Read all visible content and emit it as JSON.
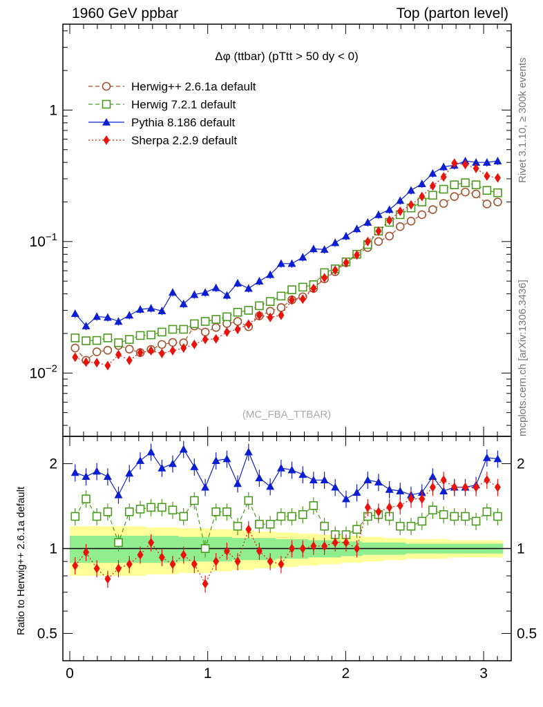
{
  "header": {
    "left": "1960 GeV ppbar",
    "right": "Top (parton level)"
  },
  "side_notes": {
    "rivet": "Rivet 3.1.10, ≥ 300k events",
    "mcplots": "mcplots.cern.ch [arXiv:1306.3436]"
  },
  "analysis_tag": "(MC_FBA_TTBAR)",
  "chart_data": [
    {
      "type": "scatter",
      "title": "Δφ (ttbar) (pTtt > 50 dy < 0)",
      "yscale": "log",
      "xlim": [
        -0.05,
        3.2
      ],
      "ylim": [
        0.0033,
        4.5
      ],
      "yticklabels": [
        "10^-2",
        "10^-1",
        "1"
      ],
      "legend_position": "top-left",
      "x": [
        0.039,
        0.118,
        0.196,
        0.275,
        0.353,
        0.432,
        0.511,
        0.589,
        0.668,
        0.746,
        0.825,
        0.903,
        0.982,
        1.06,
        1.139,
        1.217,
        1.296,
        1.374,
        1.453,
        1.532,
        1.61,
        1.689,
        1.767,
        1.846,
        1.924,
        2.003,
        2.081,
        2.16,
        2.238,
        2.317,
        2.395,
        2.474,
        2.553,
        2.631,
        2.71,
        2.788,
        2.867,
        2.945,
        3.024,
        3.102
      ],
      "series": [
        {
          "name": "Herwig++ 2.6.1a default",
          "color": "#a0522d",
          "marker": "open-circle",
          "line": "dashed",
          "values": [
            0.0155,
            0.0125,
            0.0145,
            0.0149,
            0.0162,
            0.0152,
            0.0143,
            0.0151,
            0.0165,
            0.0171,
            0.017,
            0.0228,
            0.0205,
            0.0222,
            0.0238,
            0.0247,
            0.0225,
            0.0272,
            0.0295,
            0.0315,
            0.036,
            0.038,
            0.044,
            0.052,
            0.059,
            0.069,
            0.08,
            0.09,
            0.1,
            0.11,
            0.13,
            0.143,
            0.16,
            0.175,
            0.195,
            0.22,
            0.238,
            0.23,
            0.193,
            0.2
          ]
        },
        {
          "name": "Herwig 7.2.1 default",
          "color": "#4a9a1e",
          "marker": "open-square",
          "line": "dashed",
          "values": [
            0.0185,
            0.0176,
            0.0177,
            0.0185,
            0.017,
            0.018,
            0.0193,
            0.0195,
            0.0205,
            0.0215,
            0.0215,
            0.0237,
            0.0247,
            0.0256,
            0.0268,
            0.029,
            0.03,
            0.0325,
            0.035,
            0.0385,
            0.043,
            0.045,
            0.047,
            0.058,
            0.062,
            0.07,
            0.08,
            0.095,
            0.12,
            0.14,
            0.16,
            0.18,
            0.2,
            0.225,
            0.25,
            0.27,
            0.28,
            0.27,
            0.245,
            0.235
          ]
        },
        {
          "name": "Pythia 8.186 default",
          "color": "#0b1fd0",
          "marker": "filled-triangle",
          "line": "solid",
          "values": [
            0.0283,
            0.0228,
            0.0269,
            0.0265,
            0.0247,
            0.0275,
            0.0305,
            0.0311,
            0.0297,
            0.0411,
            0.0336,
            0.0395,
            0.041,
            0.0445,
            0.039,
            0.0483,
            0.044,
            0.05,
            0.056,
            0.068,
            0.068,
            0.076,
            0.088,
            0.087,
            0.098,
            0.11,
            0.125,
            0.14,
            0.16,
            0.175,
            0.205,
            0.245,
            0.275,
            0.33,
            0.37,
            0.38,
            0.41,
            0.4,
            0.4,
            0.41
          ]
        },
        {
          "name": "Sherpa 2.2.9 default",
          "color": "#e8140c",
          "marker": "filled-diamond",
          "line": "dotted",
          "values": [
            0.0132,
            0.0121,
            0.012,
            0.0114,
            0.0138,
            0.0125,
            0.0143,
            0.0148,
            0.0141,
            0.0148,
            0.0155,
            0.0165,
            0.018,
            0.0182,
            0.0205,
            0.0215,
            0.0235,
            0.0275,
            0.0265,
            0.0275,
            0.036,
            0.0365,
            0.044,
            0.053,
            0.0605,
            0.069,
            0.079,
            0.1,
            0.12,
            0.145,
            0.17,
            0.19,
            0.22,
            0.265,
            0.31,
            0.395,
            0.385,
            0.36,
            0.315,
            0.305
          ]
        }
      ]
    },
    {
      "type": "scatter",
      "ylabel": "Ratio to Herwig++ 2.6.1a default",
      "yscale": "log",
      "xlim": [
        -0.05,
        3.2
      ],
      "ylim": [
        0.4,
        2.5
      ],
      "xticklabels": [
        "0",
        "1",
        "2",
        "3"
      ],
      "yticklabels": [
        "0.5",
        "1",
        "2"
      ],
      "reference_line": 1.0,
      "band_colors": {
        "inner": "#90ee90",
        "outer": "#ffff99"
      },
      "band_inner_halfwidth": [
        0.11,
        0.11,
        0.11,
        0.11,
        0.11,
        0.11,
        0.11,
        0.11,
        0.11,
        0.11,
        0.1,
        0.1,
        0.1,
        0.1,
        0.1,
        0.09,
        0.09,
        0.09,
        0.09,
        0.08,
        0.08,
        0.08,
        0.07,
        0.07,
        0.07,
        0.06,
        0.06,
        0.05,
        0.05,
        0.05,
        0.05,
        0.04,
        0.04,
        0.04,
        0.04,
        0.04,
        0.04,
        0.04,
        0.04,
        0.04
      ],
      "band_outer_halfwidth": [
        0.2,
        0.2,
        0.2,
        0.2,
        0.2,
        0.2,
        0.2,
        0.19,
        0.19,
        0.19,
        0.18,
        0.18,
        0.18,
        0.17,
        0.17,
        0.16,
        0.16,
        0.15,
        0.15,
        0.14,
        0.14,
        0.13,
        0.13,
        0.12,
        0.12,
        0.11,
        0.11,
        0.1,
        0.1,
        0.09,
        0.09,
        0.08,
        0.08,
        0.08,
        0.08,
        0.07,
        0.07,
        0.07,
        0.07,
        0.07
      ],
      "series": [
        {
          "name": "Herwig 7.2.1 default",
          "values": [
            1.3,
            1.5,
            1.3,
            1.35,
            1.05,
            1.35,
            1.38,
            1.4,
            1.4,
            1.37,
            1.3,
            1.48,
            1.0,
            1.35,
            1.35,
            1.2,
            1.48,
            1.22,
            1.22,
            1.3,
            1.3,
            1.32,
            1.42,
            1.2,
            1.12,
            1.12,
            1.17,
            1.3,
            1.32,
            1.3,
            1.2,
            1.2,
            1.25,
            1.37,
            1.32,
            1.3,
            1.3,
            1.25,
            1.35,
            1.3
          ]
        },
        {
          "name": "Pythia 8.186 default",
          "values": [
            1.86,
            1.8,
            1.88,
            1.8,
            1.55,
            1.85,
            2.05,
            2.2,
            1.93,
            2.0,
            2.25,
            1.95,
            1.65,
            2.05,
            2.08,
            1.7,
            2.2,
            1.78,
            1.66,
            1.93,
            1.9,
            1.83,
            1.75,
            1.75,
            1.65,
            1.5,
            1.58,
            1.75,
            1.72,
            1.62,
            1.6,
            1.55,
            1.58,
            1.8,
            1.6,
            1.65,
            1.65,
            1.68,
            2.1,
            2.08
          ]
        },
        {
          "name": "Sherpa 2.2.9 default",
          "values": [
            0.87,
            0.97,
            0.85,
            0.78,
            0.85,
            0.88,
            0.95,
            1.05,
            0.93,
            0.88,
            0.95,
            0.88,
            0.75,
            0.9,
            0.98,
            0.9,
            1.17,
            0.98,
            0.9,
            0.88,
            1.0,
            1.0,
            1.02,
            1.02,
            1.05,
            1.05,
            1.0,
            1.4,
            1.35,
            1.4,
            1.42,
            1.5,
            1.5,
            1.65,
            1.75,
            1.65,
            1.65,
            1.65,
            1.75,
            1.65
          ]
        }
      ]
    }
  ]
}
